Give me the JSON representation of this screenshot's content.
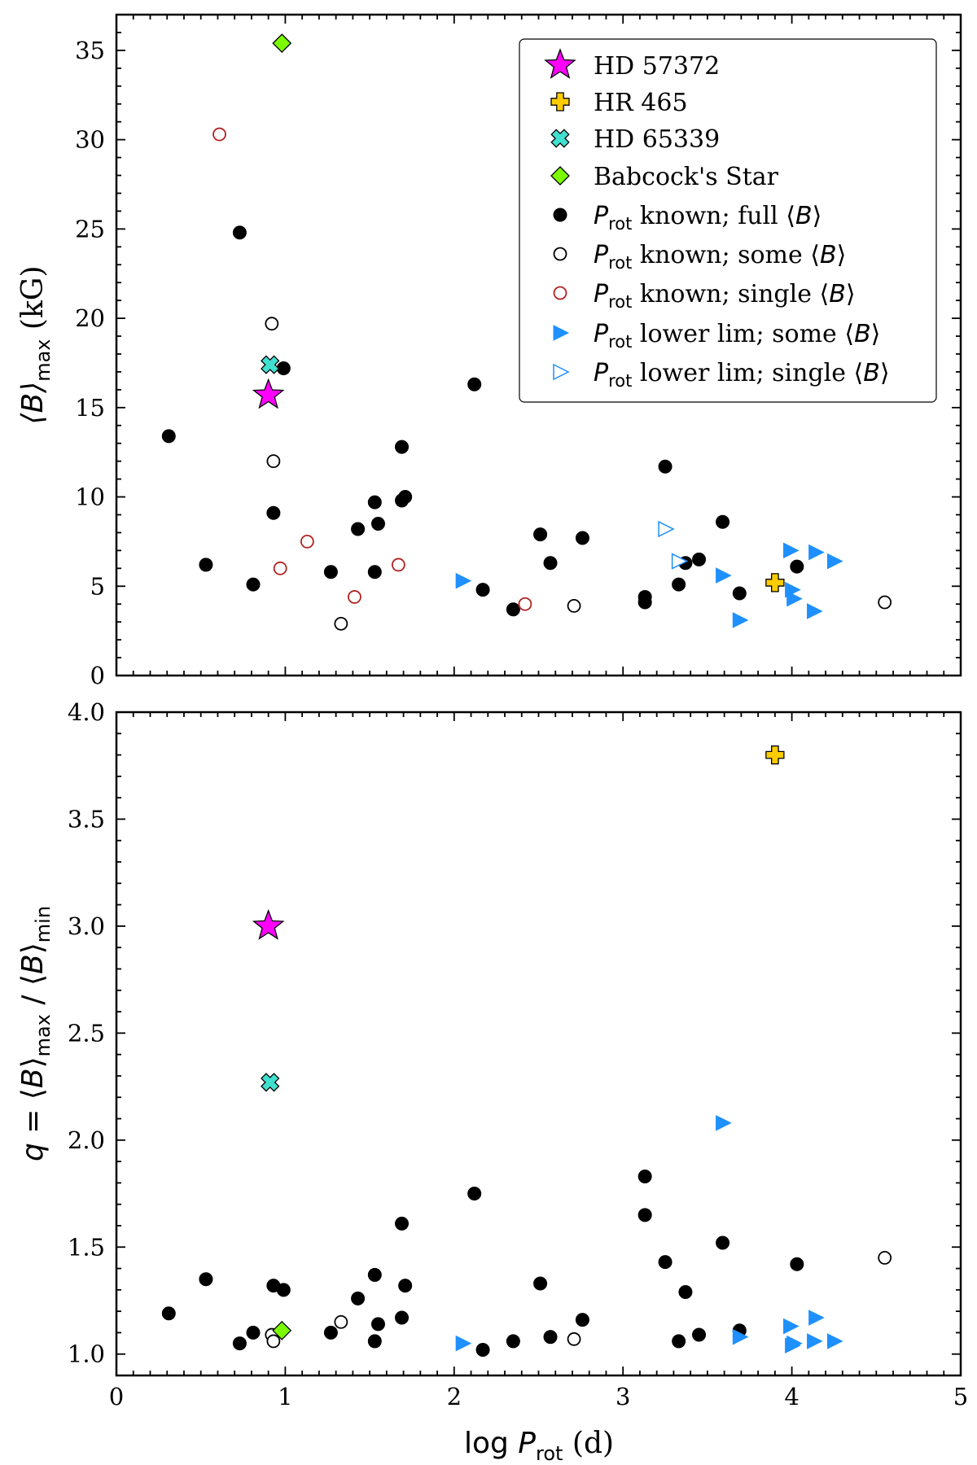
{
  "chart_data": [
    {
      "type": "scatter",
      "ylabel": "⟨B⟩max (kG)",
      "xlabel": "",
      "xlim": [
        0,
        5
      ],
      "ylim": [
        0,
        37
      ],
      "xticks": [
        "0",
        "1",
        "2",
        "3",
        "4",
        "5"
      ],
      "yticks": [
        {
          "v": 0,
          "label": "0"
        },
        {
          "v": 5,
          "label": "5"
        },
        {
          "v": 10,
          "label": "10"
        },
        {
          "v": 15,
          "label": "15"
        },
        {
          "v": 20,
          "label": "20"
        },
        {
          "v": 25,
          "label": "25"
        },
        {
          "v": 30,
          "label": "30"
        },
        {
          "v": 35,
          "label": "35"
        }
      ],
      "legend_position": "top-right",
      "series": [
        {
          "name": "HD 57372",
          "marker": "star",
          "color": "#ff00ff",
          "points": [
            [
              0.9,
              15.7
            ]
          ]
        },
        {
          "name": "HR 465",
          "marker": "plus",
          "color": "#ffcc00",
          "points": [
            [
              3.9,
              5.2
            ]
          ]
        },
        {
          "name": "HD 65339",
          "marker": "x",
          "color": "#40e0d0",
          "points": [
            [
              0.91,
              17.4
            ]
          ]
        },
        {
          "name": "Babcock's Star",
          "marker": "diamond",
          "color": "#7cfc00",
          "points": [
            [
              0.98,
              35.4
            ]
          ]
        },
        {
          "name": "Prot known; full ⟨B⟩",
          "marker": "filled-circle",
          "color": "#000000",
          "points": [
            [
              0.31,
              13.4
            ],
            [
              0.53,
              6.2
            ],
            [
              0.73,
              24.8
            ],
            [
              0.81,
              5.1
            ],
            [
              0.93,
              9.1
            ],
            [
              0.99,
              17.2
            ],
            [
              1.27,
              5.8
            ],
            [
              1.43,
              8.2
            ],
            [
              1.53,
              9.7
            ],
            [
              1.53,
              5.8
            ],
            [
              1.55,
              8.5
            ],
            [
              1.69,
              12.8
            ],
            [
              1.69,
              9.8
            ],
            [
              1.71,
              10.0
            ],
            [
              2.12,
              16.3
            ],
            [
              2.17,
              4.8
            ],
            [
              2.35,
              3.7
            ],
            [
              2.51,
              7.9
            ],
            [
              2.57,
              6.3
            ],
            [
              2.76,
              7.7
            ],
            [
              3.13,
              4.4
            ],
            [
              3.13,
              4.1
            ],
            [
              3.25,
              11.7
            ],
            [
              3.33,
              5.1
            ],
            [
              3.37,
              6.3
            ],
            [
              3.45,
              6.5
            ],
            [
              3.59,
              8.6
            ],
            [
              3.69,
              4.6
            ],
            [
              4.03,
              6.1
            ]
          ]
        },
        {
          "name": "Prot known; some ⟨B⟩",
          "marker": "open-circle",
          "color": "#000000",
          "points": [
            [
              0.92,
              19.7
            ],
            [
              0.93,
              12.0
            ],
            [
              1.33,
              2.9
            ],
            [
              2.71,
              3.9
            ],
            [
              4.55,
              4.1
            ]
          ]
        },
        {
          "name": "Prot known; single ⟨B⟩",
          "marker": "open-circle",
          "color": "#b22222",
          "points": [
            [
              0.61,
              30.3
            ],
            [
              0.97,
              6.0
            ],
            [
              1.13,
              7.5
            ],
            [
              1.41,
              4.4
            ],
            [
              1.67,
              6.2
            ],
            [
              2.42,
              4.0
            ]
          ]
        },
        {
          "name": "Prot lower lim; some ⟨B⟩",
          "marker": "filled-triangle",
          "color": "#1e90ff",
          "points": [
            [
              2.05,
              5.3
            ],
            [
              3.59,
              5.6
            ],
            [
              3.69,
              3.1
            ],
            [
              3.99,
              7.0
            ],
            [
              4.0,
              4.8
            ],
            [
              4.01,
              4.3
            ],
            [
              4.13,
              3.6
            ],
            [
              4.14,
              6.9
            ],
            [
              4.25,
              6.4
            ]
          ]
        },
        {
          "name": "Prot lower lim; single ⟨B⟩",
          "marker": "open-triangle",
          "color": "#1e90ff",
          "points": [
            [
              3.25,
              8.2
            ],
            [
              3.33,
              6.4
            ]
          ]
        }
      ]
    },
    {
      "type": "scatter",
      "ylabel": "q = ⟨B⟩max / ⟨B⟩min",
      "xlabel": "log Prot (d)",
      "xlim": [
        0,
        5
      ],
      "ylim": [
        0.9,
        4.0
      ],
      "xticks": [
        "0",
        "1",
        "2",
        "3",
        "4",
        "5"
      ],
      "yticks": [
        {
          "v": 1.0,
          "label": "1.0"
        },
        {
          "v": 1.5,
          "label": "1.5"
        },
        {
          "v": 2.0,
          "label": "2.0"
        },
        {
          "v": 2.5,
          "label": "2.5"
        },
        {
          "v": 3.0,
          "label": "3.0"
        },
        {
          "v": 3.5,
          "label": "3.5"
        },
        {
          "v": 4.0,
          "label": "4.0"
        }
      ],
      "series": [
        {
          "name": "HD 57372",
          "marker": "star",
          "color": "#ff00ff",
          "points": [
            [
              0.9,
              3.0
            ]
          ]
        },
        {
          "name": "HR 465",
          "marker": "plus",
          "color": "#ffcc00",
          "points": [
            [
              3.9,
              3.8
            ]
          ]
        },
        {
          "name": "HD 65339",
          "marker": "x",
          "color": "#40e0d0",
          "points": [
            [
              0.91,
              2.27
            ]
          ]
        },
        {
          "name": "Babcock's Star",
          "marker": "diamond",
          "color": "#7cfc00",
          "points": [
            [
              0.98,
              1.11
            ]
          ]
        },
        {
          "name": "Prot known; full ⟨B⟩",
          "marker": "filled-circle",
          "color": "#000000",
          "points": [
            [
              0.31,
              1.19
            ],
            [
              0.53,
              1.35
            ],
            [
              0.73,
              1.05
            ],
            [
              0.81,
              1.1
            ],
            [
              0.93,
              1.32
            ],
            [
              0.99,
              1.3
            ],
            [
              1.27,
              1.1
            ],
            [
              1.43,
              1.26
            ],
            [
              1.53,
              1.37
            ],
            [
              1.53,
              1.06
            ],
            [
              1.55,
              1.14
            ],
            [
              1.69,
              1.61
            ],
            [
              1.69,
              1.17
            ],
            [
              1.71,
              1.32
            ],
            [
              2.12,
              1.75
            ],
            [
              2.17,
              1.02
            ],
            [
              2.35,
              1.06
            ],
            [
              2.51,
              1.33
            ],
            [
              2.57,
              1.08
            ],
            [
              2.76,
              1.16
            ],
            [
              3.13,
              1.83
            ],
            [
              3.13,
              1.65
            ],
            [
              3.25,
              1.43
            ],
            [
              3.33,
              1.06
            ],
            [
              3.37,
              1.29
            ],
            [
              3.45,
              1.09
            ],
            [
              3.59,
              1.52
            ],
            [
              3.69,
              1.11
            ],
            [
              4.03,
              1.42
            ]
          ]
        },
        {
          "name": "Prot known; some ⟨B⟩",
          "marker": "open-circle",
          "color": "#000000",
          "points": [
            [
              0.92,
              1.09
            ],
            [
              0.93,
              1.06
            ],
            [
              1.33,
              1.15
            ],
            [
              2.71,
              1.07
            ],
            [
              4.55,
              1.45
            ]
          ]
        },
        {
          "name": "Prot lower lim; some ⟨B⟩",
          "marker": "filled-triangle",
          "color": "#1e90ff",
          "points": [
            [
              2.05,
              1.05
            ],
            [
              3.59,
              2.08
            ],
            [
              3.69,
              1.08
            ],
            [
              3.99,
              1.13
            ],
            [
              4.0,
              1.04
            ],
            [
              4.01,
              1.05
            ],
            [
              4.13,
              1.06
            ],
            [
              4.14,
              1.17
            ],
            [
              4.25,
              1.06
            ]
          ]
        }
      ]
    }
  ]
}
